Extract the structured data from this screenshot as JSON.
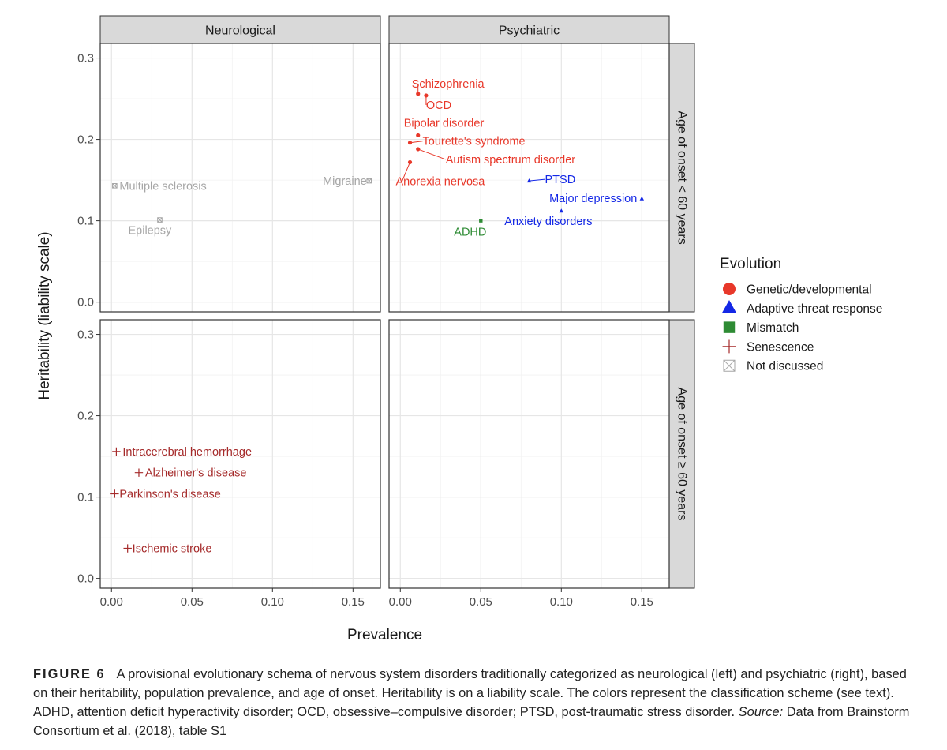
{
  "chart_data": {
    "type": "scatter",
    "xlabel": "Prevalence",
    "ylabel": "Heritability (liability scale)",
    "xlim": [
      -0.007,
      0.167
    ],
    "ylim": [
      -0.012,
      0.318
    ],
    "x_ticks": [
      0.0,
      0.05,
      0.1,
      0.15
    ],
    "x_tick_labels": [
      "0.00",
      "0.05",
      "0.10",
      "0.15"
    ],
    "y_ticks": [
      0.0,
      0.1,
      0.2,
      0.3
    ],
    "y_tick_labels": [
      "0.0",
      "0.1",
      "0.2",
      "0.3"
    ],
    "grid": true,
    "facet_columns": [
      "Neurological",
      "Psychiatric"
    ],
    "facet_rows": [
      "Age of onset < 60 years",
      "Age of onset ≥ 60 years"
    ],
    "legend": {
      "title": "Evolution",
      "position": "right",
      "items": [
        {
          "label": "Genetic/developmental",
          "shape": "circle",
          "color": "#e8382a"
        },
        {
          "label": "Adaptive threat response",
          "shape": "triangle",
          "color": "#1428e6"
        },
        {
          "label": "Mismatch",
          "shape": "square",
          "color": "#2e8b34"
        },
        {
          "label": "Senescence",
          "shape": "cross",
          "color": "#a52a2a"
        },
        {
          "label": "Not discussed",
          "shape": "boxx",
          "color": "#a6a6a6"
        }
      ]
    },
    "points": [
      {
        "name": "Multiple sclerosis",
        "panel": [
          0,
          0
        ],
        "x": 0.002,
        "y": 0.143,
        "category": "Not discussed"
      },
      {
        "name": "Migraine",
        "panel": [
          0,
          0
        ],
        "x": 0.16,
        "y": 0.149,
        "category": "Not discussed"
      },
      {
        "name": "Epilepsy",
        "panel": [
          0,
          0
        ],
        "x": 0.03,
        "y": 0.101,
        "category": "Not discussed"
      },
      {
        "name": "Schizophrenia",
        "panel": [
          0,
          1
        ],
        "x": 0.011,
        "y": 0.256,
        "category": "Genetic/developmental"
      },
      {
        "name": "OCD",
        "panel": [
          0,
          1
        ],
        "x": 0.016,
        "y": 0.254,
        "category": "Genetic/developmental"
      },
      {
        "name": "Bipolar disorder",
        "panel": [
          0,
          1
        ],
        "x": 0.011,
        "y": 0.205,
        "category": "Genetic/developmental"
      },
      {
        "name": "Tourette's syndrome",
        "panel": [
          0,
          1
        ],
        "x": 0.006,
        "y": 0.196,
        "category": "Genetic/developmental"
      },
      {
        "name": "Autism spectrum disorder",
        "panel": [
          0,
          1
        ],
        "x": 0.011,
        "y": 0.188,
        "category": "Genetic/developmental"
      },
      {
        "name": "Anorexia nervosa",
        "panel": [
          0,
          1
        ],
        "x": 0.006,
        "y": 0.172,
        "category": "Genetic/developmental"
      },
      {
        "name": "PTSD",
        "panel": [
          0,
          1
        ],
        "x": 0.08,
        "y": 0.149,
        "category": "Adaptive threat response"
      },
      {
        "name": "Major depression",
        "panel": [
          0,
          1
        ],
        "x": 0.15,
        "y": 0.127,
        "category": "Adaptive threat response"
      },
      {
        "name": "Anxiety disorders",
        "panel": [
          0,
          1
        ],
        "x": 0.1,
        "y": 0.112,
        "category": "Adaptive threat response"
      },
      {
        "name": "ADHD",
        "panel": [
          0,
          1
        ],
        "x": 0.05,
        "y": 0.1,
        "category": "Mismatch"
      },
      {
        "name": "Intracerebral hemorrhage",
        "panel": [
          1,
          0
        ],
        "x": 0.003,
        "y": 0.156,
        "category": "Senescence"
      },
      {
        "name": "Alzheimer's disease",
        "panel": [
          1,
          0
        ],
        "x": 0.017,
        "y": 0.13,
        "category": "Senescence"
      },
      {
        "name": "Parkinson's disease",
        "panel": [
          1,
          0
        ],
        "x": 0.002,
        "y": 0.104,
        "category": "Senescence"
      },
      {
        "name": "Ischemic stroke",
        "panel": [
          1,
          0
        ],
        "x": 0.01,
        "y": 0.037,
        "category": "Senescence"
      }
    ]
  },
  "caption": {
    "figure_label": "FIGURE 6",
    "text": "A provisional evolutionary schema of nervous system disorders traditionally categorized as neurological (left) and psychiatric (right), based on their heritability, population prevalence, and age of onset. Heritability is on a liability scale. The colors represent the classification scheme (see text). ADHD, attention deficit hyperactivity disorder; OCD, obsessive–compulsive disorder; PTSD, post-traumatic stress disorder.",
    "source_label": "Source:",
    "source_text": "Data from Brainstorm Consortium et al. (2018), table S1"
  }
}
